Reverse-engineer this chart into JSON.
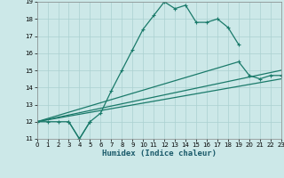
{
  "xlabel": "Humidex (Indice chaleur)",
  "xlim": [
    0,
    23
  ],
  "ylim": [
    11,
    19
  ],
  "xticks": [
    0,
    1,
    2,
    3,
    4,
    5,
    6,
    7,
    8,
    9,
    10,
    11,
    12,
    13,
    14,
    15,
    16,
    17,
    18,
    19,
    20,
    21,
    22,
    23
  ],
  "yticks": [
    11,
    12,
    13,
    14,
    15,
    16,
    17,
    18,
    19
  ],
  "background_color": "#cce8e8",
  "grid_color": "#aad0d0",
  "line_color": "#1a7a6a",
  "line1_x": [
    0,
    1,
    2,
    3,
    4,
    5,
    6,
    7,
    8,
    9,
    10,
    11,
    12,
    13,
    14,
    15,
    16,
    17,
    18,
    19
  ],
  "line1_y": [
    12.0,
    12.0,
    12.0,
    12.0,
    11.0,
    12.0,
    12.5,
    13.8,
    15.0,
    16.2,
    17.4,
    18.2,
    19.0,
    18.6,
    18.8,
    17.8,
    17.8,
    18.0,
    17.5,
    16.5
  ],
  "line2_x": [
    0,
    1,
    2,
    3,
    4,
    5
  ],
  "line2_y": [
    12.0,
    12.0,
    12.0,
    12.0,
    11.0,
    12.0
  ],
  "line3_x": [
    0,
    19,
    20,
    21,
    22,
    23
  ],
  "line3_y": [
    12.0,
    15.5,
    14.7,
    14.5,
    14.7,
    14.7
  ],
  "line4_x": [
    0,
    23
  ],
  "line4_y": [
    12.0,
    15.0
  ],
  "line5_x": [
    0,
    23
  ],
  "line5_y": [
    12.0,
    14.5
  ]
}
